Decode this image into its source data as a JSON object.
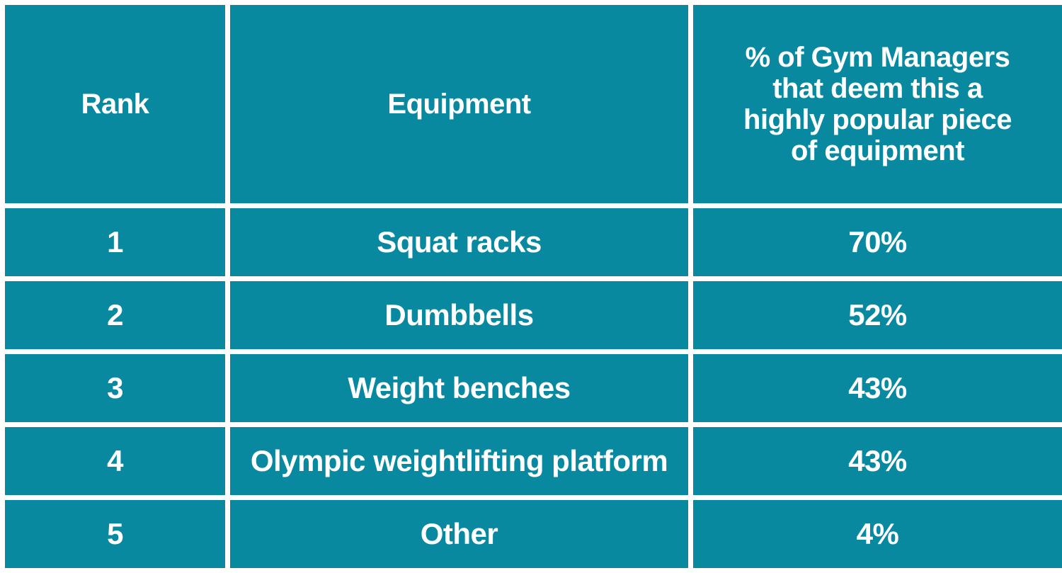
{
  "colors": {
    "cell_fill": "#08899f",
    "text": "#ffffff",
    "grid_lines": "#ffffff"
  },
  "chart_data": {
    "type": "table",
    "columns": [
      "Rank",
      "Equipment",
      "% of Gym Managers that deem this a highly popular piece of equipment"
    ],
    "rows": [
      {
        "rank": "1",
        "equipment": "Squat racks",
        "percent": "70%"
      },
      {
        "rank": "2",
        "equipment": "Dumbbells",
        "percent": "52%"
      },
      {
        "rank": "3",
        "equipment": "Weight benches",
        "percent": "43%"
      },
      {
        "rank": "4",
        "equipment": "Olympic weightlifting platform",
        "percent": "43%"
      },
      {
        "rank": "5",
        "equipment": "Other",
        "percent": "4%"
      }
    ]
  }
}
